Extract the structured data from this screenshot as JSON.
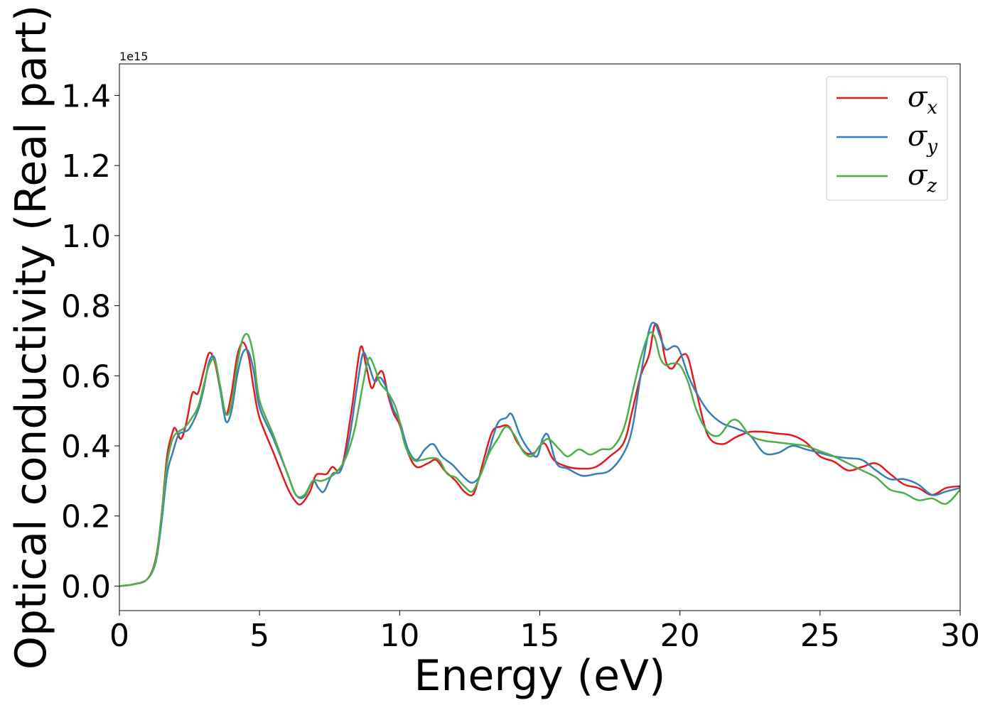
{
  "chart_data": {
    "type": "line",
    "xlabel": "Energy (eV)",
    "ylabel": "Optical conductivity (Real part)",
    "y_offset_label": "1e15",
    "xlim": [
      0,
      30
    ],
    "ylim": [
      -0.07,
      1.49
    ],
    "x_ticks": [
      0,
      5,
      10,
      15,
      20,
      25,
      30
    ],
    "x_tick_labels": [
      "0",
      "5",
      "10",
      "15",
      "20",
      "25",
      "30"
    ],
    "y_ticks": [
      0.0,
      0.2,
      0.4,
      0.6,
      0.8,
      1.0,
      1.2,
      1.4
    ],
    "y_tick_labels": [
      "0.0",
      "0.2",
      "0.4",
      "0.6",
      "0.8",
      "1.0",
      "1.2",
      "1.4"
    ],
    "grid": false,
    "legend_position": "top-right",
    "series": [
      {
        "name": "σx",
        "symbol": "σ",
        "subscript": "x",
        "color": "#e41a1c",
        "x": [
          0,
          0.5,
          1.0,
          1.3,
          1.5,
          1.7,
          1.9,
          2.0,
          2.2,
          2.4,
          2.6,
          2.8,
          3.0,
          3.2,
          3.4,
          3.6,
          3.8,
          4.0,
          4.2,
          4.4,
          4.6,
          4.8,
          5.0,
          5.5,
          6.0,
          6.3,
          6.5,
          6.8,
          7.0,
          7.2,
          7.4,
          7.6,
          7.8,
          8.0,
          8.3,
          8.6,
          8.8,
          9.0,
          9.2,
          9.4,
          9.6,
          9.8,
          10.0,
          10.3,
          10.6,
          11.0,
          11.3,
          11.6,
          12.0,
          12.3,
          12.6,
          12.8,
          13.0,
          13.3,
          13.6,
          13.9,
          14.2,
          14.5,
          14.8,
          15.0,
          15.2,
          15.5,
          16.0,
          16.5,
          17.0,
          17.5,
          18.0,
          18.3,
          18.6,
          18.9,
          19.1,
          19.3,
          19.5,
          19.7,
          19.9,
          20.1,
          20.3,
          20.6,
          21.0,
          21.5,
          22.0,
          22.5,
          23.0,
          23.5,
          24.0,
          24.5,
          25.0,
          25.5,
          26.0,
          26.5,
          27.0,
          27.5,
          28.0,
          28.5,
          29.0,
          29.5,
          30.0
        ],
        "y": [
          0.0,
          0.005,
          0.02,
          0.08,
          0.2,
          0.37,
          0.44,
          0.45,
          0.42,
          0.47,
          0.55,
          0.55,
          0.61,
          0.665,
          0.64,
          0.56,
          0.49,
          0.55,
          0.655,
          0.695,
          0.66,
          0.56,
          0.48,
          0.38,
          0.28,
          0.24,
          0.235,
          0.27,
          0.315,
          0.32,
          0.32,
          0.34,
          0.33,
          0.36,
          0.51,
          0.68,
          0.63,
          0.565,
          0.6,
          0.61,
          0.54,
          0.49,
          0.46,
          0.38,
          0.34,
          0.35,
          0.36,
          0.33,
          0.3,
          0.27,
          0.26,
          0.3,
          0.36,
          0.44,
          0.455,
          0.455,
          0.41,
          0.38,
          0.38,
          0.4,
          0.405,
          0.36,
          0.34,
          0.335,
          0.34,
          0.37,
          0.41,
          0.5,
          0.6,
          0.66,
          0.745,
          0.72,
          0.64,
          0.62,
          0.64,
          0.66,
          0.65,
          0.55,
          0.43,
          0.405,
          0.425,
          0.44,
          0.44,
          0.435,
          0.43,
          0.41,
          0.37,
          0.355,
          0.33,
          0.34,
          0.35,
          0.32,
          0.29,
          0.28,
          0.26,
          0.28,
          0.285
        ]
      },
      {
        "name": "σy",
        "symbol": "σ",
        "subscript": "y",
        "color": "#377eb8",
        "x": [
          0,
          0.5,
          1.0,
          1.3,
          1.5,
          1.7,
          1.9,
          2.1,
          2.3,
          2.5,
          2.8,
          3.0,
          3.2,
          3.4,
          3.6,
          3.8,
          4.0,
          4.2,
          4.4,
          4.6,
          4.8,
          5.0,
          5.5,
          6.0,
          6.3,
          6.6,
          6.9,
          7.1,
          7.3,
          7.6,
          7.9,
          8.2,
          8.5,
          8.7,
          8.9,
          9.1,
          9.3,
          9.5,
          9.8,
          10.0,
          10.3,
          10.6,
          10.9,
          11.2,
          11.5,
          11.9,
          12.3,
          12.6,
          12.9,
          13.2,
          13.5,
          13.8,
          14.0,
          14.3,
          14.6,
          14.9,
          15.1,
          15.3,
          15.6,
          16.0,
          16.5,
          17.0,
          17.5,
          18.0,
          18.3,
          18.6,
          18.9,
          19.1,
          19.3,
          19.5,
          19.8,
          20.0,
          20.3,
          20.6,
          21.0,
          21.5,
          22.0,
          22.5,
          23.0,
          23.5,
          24.0,
          24.5,
          25.0,
          25.5,
          26.0,
          26.5,
          27.0,
          27.5,
          28.0,
          28.5,
          29.0,
          29.5,
          30.0
        ],
        "y": [
          0.0,
          0.005,
          0.02,
          0.07,
          0.18,
          0.32,
          0.38,
          0.43,
          0.44,
          0.45,
          0.5,
          0.56,
          0.64,
          0.65,
          0.56,
          0.47,
          0.5,
          0.6,
          0.665,
          0.67,
          0.61,
          0.51,
          0.42,
          0.32,
          0.26,
          0.255,
          0.3,
          0.28,
          0.27,
          0.32,
          0.33,
          0.42,
          0.58,
          0.665,
          0.63,
          0.585,
          0.595,
          0.57,
          0.5,
          0.47,
          0.39,
          0.36,
          0.39,
          0.405,
          0.37,
          0.345,
          0.31,
          0.295,
          0.32,
          0.39,
          0.465,
          0.48,
          0.49,
          0.43,
          0.39,
          0.37,
          0.42,
          0.43,
          0.35,
          0.335,
          0.315,
          0.32,
          0.33,
          0.38,
          0.45,
          0.6,
          0.73,
          0.75,
          0.71,
          0.675,
          0.685,
          0.67,
          0.6,
          0.55,
          0.5,
          0.465,
          0.45,
          0.43,
          0.38,
          0.38,
          0.4,
          0.39,
          0.38,
          0.37,
          0.365,
          0.36,
          0.33,
          0.305,
          0.305,
          0.29,
          0.26,
          0.27,
          0.28
        ]
      },
      {
        "name": "σz",
        "symbol": "σ",
        "subscript": "z",
        "color": "#4daf4a",
        "x": [
          0,
          0.5,
          1.0,
          1.3,
          1.5,
          1.7,
          1.9,
          2.1,
          2.3,
          2.5,
          2.8,
          3.0,
          3.2,
          3.4,
          3.6,
          3.8,
          4.0,
          4.2,
          4.4,
          4.6,
          4.8,
          5.0,
          5.5,
          6.0,
          6.3,
          6.6,
          6.9,
          7.2,
          7.5,
          7.8,
          8.1,
          8.4,
          8.7,
          8.9,
          9.1,
          9.3,
          9.6,
          9.9,
          10.2,
          10.5,
          10.8,
          11.1,
          11.4,
          11.7,
          12.0,
          12.3,
          12.6,
          12.9,
          13.2,
          13.5,
          13.8,
          14.1,
          14.4,
          14.7,
          15.0,
          15.3,
          15.7,
          16.0,
          16.4,
          16.8,
          17.2,
          17.6,
          18.0,
          18.3,
          18.6,
          18.9,
          19.1,
          19.3,
          19.5,
          19.7,
          20.0,
          20.3,
          20.6,
          21.0,
          21.4,
          21.8,
          22.1,
          22.5,
          23.0,
          23.5,
          24.0,
          24.5,
          25.0,
          25.5,
          26.0,
          26.5,
          27.0,
          27.5,
          28.0,
          28.5,
          29.0,
          29.5,
          30.0
        ],
        "y": [
          0.0,
          0.005,
          0.02,
          0.075,
          0.2,
          0.35,
          0.42,
          0.44,
          0.45,
          0.47,
          0.51,
          0.57,
          0.63,
          0.645,
          0.57,
          0.49,
          0.52,
          0.63,
          0.705,
          0.715,
          0.65,
          0.53,
          0.43,
          0.32,
          0.26,
          0.26,
          0.3,
          0.3,
          0.31,
          0.33,
          0.37,
          0.45,
          0.58,
          0.65,
          0.625,
          0.58,
          0.55,
          0.5,
          0.4,
          0.36,
          0.36,
          0.365,
          0.36,
          0.32,
          0.31,
          0.285,
          0.27,
          0.32,
          0.38,
          0.42,
          0.455,
          0.43,
          0.385,
          0.37,
          0.4,
          0.42,
          0.39,
          0.37,
          0.39,
          0.375,
          0.39,
          0.395,
          0.45,
          0.55,
          0.65,
          0.72,
          0.71,
          0.65,
          0.63,
          0.635,
          0.63,
          0.58,
          0.5,
          0.44,
          0.43,
          0.47,
          0.47,
          0.43,
          0.415,
          0.41,
          0.405,
          0.4,
          0.385,
          0.37,
          0.35,
          0.33,
          0.31,
          0.275,
          0.265,
          0.245,
          0.25,
          0.235,
          0.275
        ]
      }
    ]
  }
}
